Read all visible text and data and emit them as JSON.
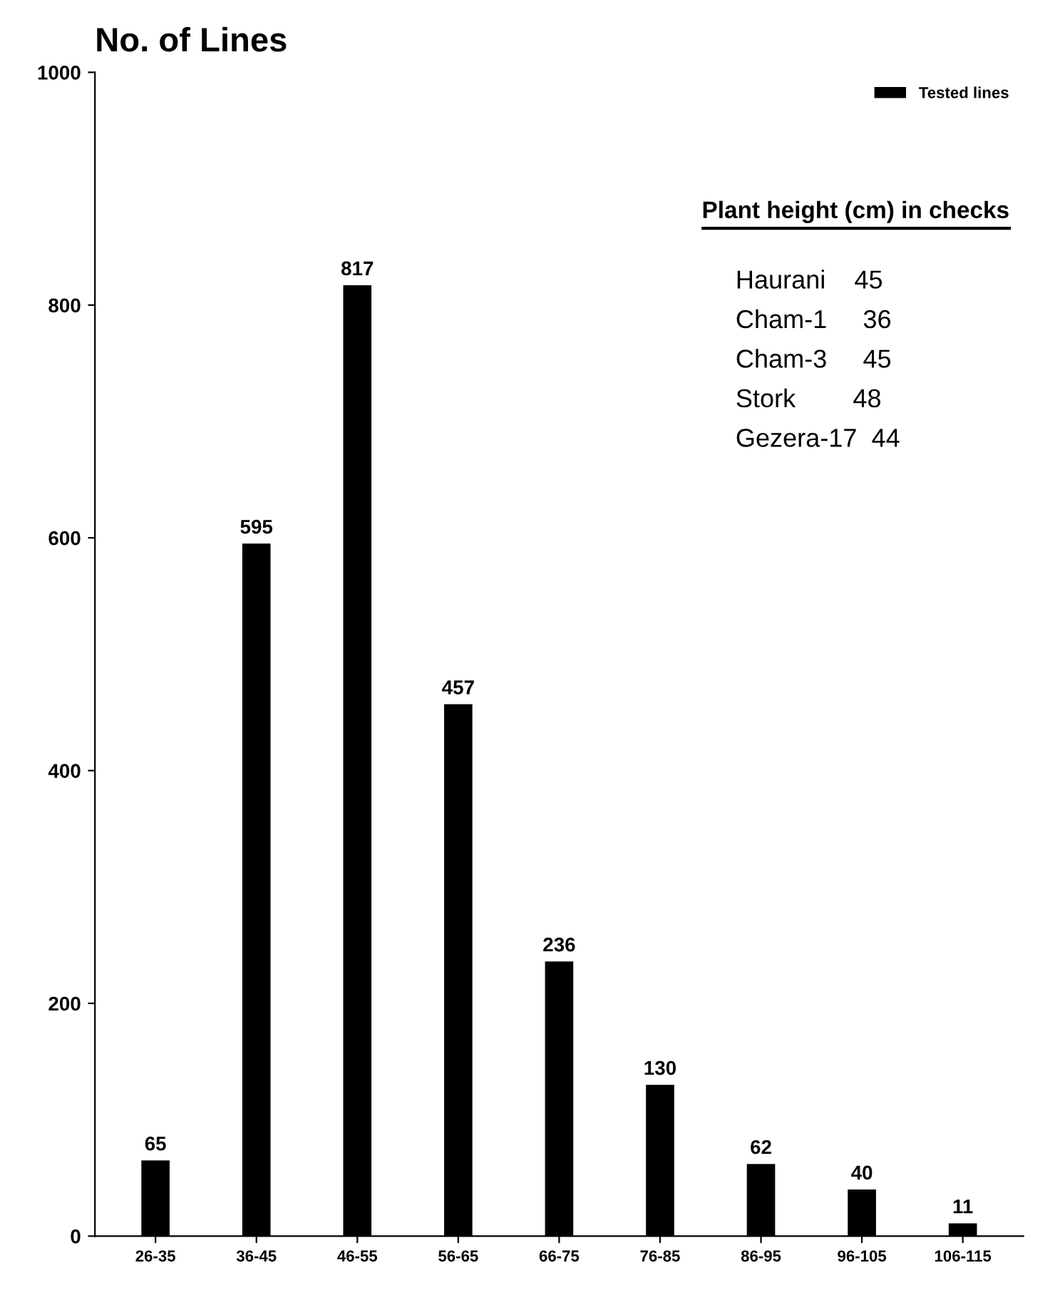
{
  "chart_data": {
    "type": "bar",
    "ylabel": "No. of Lines",
    "categories": [
      "26-35",
      "36-45",
      "46-55",
      "56-65",
      "66-75",
      "76-85",
      "86-95",
      "96-105",
      "106-115"
    ],
    "series": [
      {
        "name": "Tested lines",
        "color": "#000000",
        "values": [
          65,
          595,
          817,
          457,
          236,
          130,
          62,
          40,
          11
        ]
      }
    ],
    "ylim": [
      0,
      1000
    ],
    "yticks": [
      0,
      200,
      400,
      600,
      800,
      1000
    ],
    "data_labels": true,
    "legend": "top right",
    "grid": false,
    "annotations": [
      "Plant height (cm) in checks",
      "Haurani    45",
      "Cham-1     36",
      "Cham-3     45",
      "Stork        48",
      "Gezera-17  44"
    ]
  }
}
